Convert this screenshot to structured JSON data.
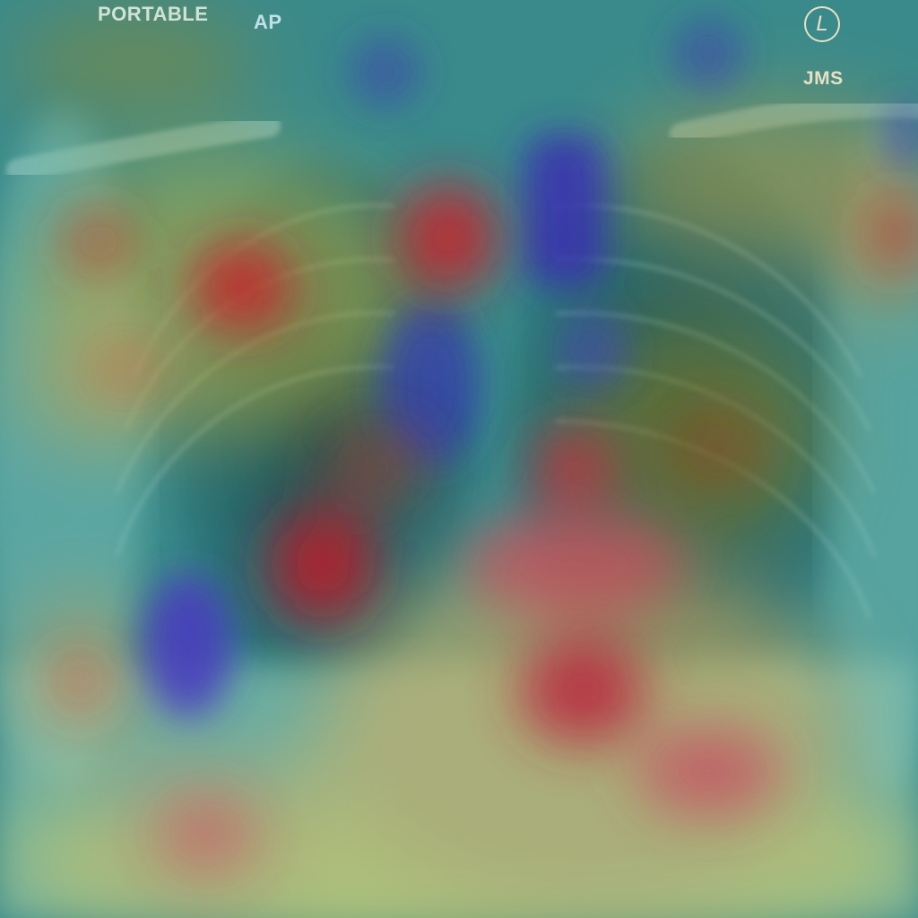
{
  "annotations": {
    "portable": "PORTABLE",
    "projection": "AP",
    "side_marker": "L",
    "technologist_initials": "JMS"
  },
  "colors": {
    "heat_low": "#3a2fb0",
    "heat_mid_low": "#2fa6b4",
    "heat_mid": "#e0c84a",
    "heat_high": "#c8202a",
    "label_text": "#cfe3d6",
    "marker_text": "#e8e0c4"
  }
}
